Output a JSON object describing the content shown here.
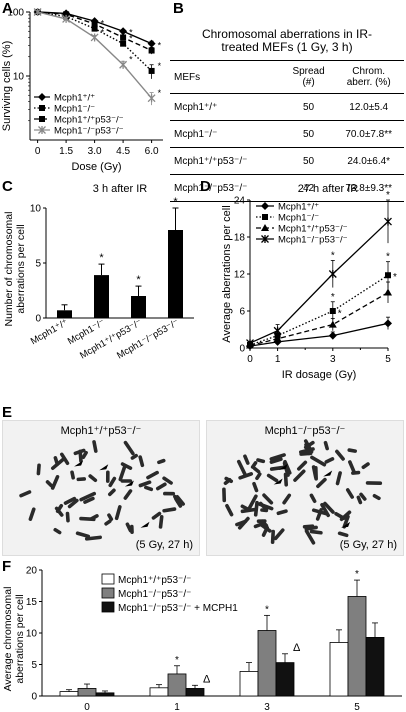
{
  "panels": {
    "A": "A",
    "B": "B",
    "C": "C",
    "D": "D",
    "E": "E",
    "F": "F"
  },
  "panelA": {
    "ylabel": "Surviving cells (%)",
    "xlabel": "Dose (Gy)",
    "xticks": [
      "0",
      "1.5",
      "3.0",
      "4.5",
      "6.0"
    ],
    "yticks": [
      "100",
      "10"
    ],
    "legend": [
      "Mcph1⁺/⁺",
      "Mcph1⁻/⁻",
      "Mcph1⁺/⁺p53⁻/⁻",
      "Mcph1⁻/⁻p53⁻/⁻"
    ],
    "asterisk": "*"
  },
  "panelB": {
    "title_line1": "Chromosomal aberrations in IR-",
    "title_line2": "treated MEFs (1 Gy, 3 h)",
    "columns": [
      "MEFs",
      "Spread\n(#)",
      "Chrom.\naberr. (%)"
    ],
    "col_mefs": "MEFs",
    "col_spread_1": "Spread",
    "col_spread_2": "(#)",
    "col_aberr_1": "Chrom.",
    "col_aberr_2": "aberr. (%)",
    "rows": [
      {
        "mef": "Mcph1⁺/⁺",
        "spread": "50",
        "aberr": "12.0±5.4"
      },
      {
        "mef": "Mcph1⁻/⁻",
        "spread": "50",
        "aberr": "70.0±7.8**"
      },
      {
        "mef": "Mcph1⁺/⁺p53⁻/⁻",
        "spread": "50",
        "aberr": "24.0±6.4*"
      },
      {
        "mef": "Mcph1⁻/⁻p53⁻/⁻",
        "spread": "42",
        "aberr": "73.8±9.3**"
      }
    ]
  },
  "panelC": {
    "title": "3 h after IR",
    "ylabel_1": "Number of chromosomal",
    "ylabel_2": "aberrations per cell",
    "asterisk": "*"
  },
  "panelD": {
    "title": "27 h after IR",
    "ylabel": "Average aberrations per cell",
    "xlabel": "IR dosage (Gy)",
    "asterisk": "*"
  },
  "panelE": {
    "left_title": "Mcph1⁺/⁺p53⁻/⁻",
    "right_title": "Mcph1⁻/⁻p53⁻/⁻",
    "left_condition": "(5 Gy, 27 h)",
    "right_condition": "(5 Gy, 27 h)"
  },
  "panelF": {
    "ylabel_1": "Average chromosomal",
    "ylabel_2": "aberrations per cell",
    "asterisk": "*",
    "delta": "Δ"
  },
  "colors": {
    "white_bar": "#ffffff",
    "grey_bar": "#7f7f7f",
    "black_bar": "#111111",
    "line_grey": "#888888"
  },
  "chart_data": [
    {
      "panel": "A",
      "type": "line",
      "x": [
        0,
        1.5,
        3.0,
        4.5,
        6.0
      ],
      "yscale": "log",
      "ylim": [
        1,
        100
      ],
      "xlabel": "Dose (Gy)",
      "ylabel": "Surviving cells (%)",
      "series": [
        {
          "name": "Mcph1⁺/⁺",
          "values": [
            100,
            95,
            72,
            50,
            32
          ],
          "errors": [
            0,
            3,
            4,
            3,
            3
          ],
          "style": "solid",
          "marker": "diamond"
        },
        {
          "name": "Mcph1⁻/⁻",
          "values": [
            100,
            85,
            55,
            32,
            12
          ],
          "errors": [
            0,
            3,
            4,
            3,
            3
          ],
          "style": "dotted",
          "marker": "square"
        },
        {
          "name": "Mcph1⁺/⁺p53⁻/⁻",
          "values": [
            100,
            92,
            65,
            40,
            25
          ],
          "errors": [
            0,
            3,
            4,
            3,
            3
          ],
          "style": "dashed",
          "marker": "square"
        },
        {
          "name": "Mcph1⁻/⁻p53⁻/⁻",
          "values": [
            100,
            78,
            40,
            15,
            4.5
          ],
          "errors": [
            0,
            3,
            3,
            2,
            1
          ],
          "style": "solid-grey",
          "marker": "x"
        }
      ],
      "legend": "bottom-left"
    },
    {
      "panel": "C",
      "type": "bar",
      "categories": [
        "Mcph1⁺/⁺",
        "Mcph1⁻/⁻",
        "Mcph1⁺/⁺p53⁻/⁻",
        "Mcph1⁻/⁻p53⁻/⁻"
      ],
      "values": [
        0.7,
        3.9,
        2.0,
        8.0
      ],
      "errors": [
        0.5,
        1.0,
        0.9,
        2.0
      ],
      "significant": [
        false,
        true,
        true,
        true
      ],
      "ylim": [
        0,
        10
      ],
      "title": "3 h after IR",
      "ylabel": "Number of chromosomal aberrations per cell"
    },
    {
      "panel": "D",
      "type": "line",
      "x": [
        0,
        1,
        3,
        5
      ],
      "xlim": [
        0,
        5
      ],
      "ylim": [
        0,
        24
      ],
      "yticks": [
        0,
        6,
        12,
        18,
        24
      ],
      "title": "27 h after IR",
      "xlabel": "IR dosage (Gy)",
      "ylabel": "Average aberrations per cell",
      "series": [
        {
          "name": "Mcph1⁺/⁺",
          "values": [
            0.3,
            1.0,
            2.0,
            4.0
          ],
          "errors": [
            0.3,
            0.4,
            0.6,
            1.0
          ],
          "style": "solid",
          "marker": "diamond"
        },
        {
          "name": "Mcph1⁻/⁻",
          "values": [
            0.5,
            2.0,
            6.0,
            11.8
          ],
          "errors": [
            0.3,
            0.6,
            1.5,
            2.2
          ],
          "style": "dotted",
          "marker": "square"
        },
        {
          "name": "Mcph1⁺/⁺p53⁻/⁻",
          "values": [
            0.4,
            1.5,
            3.8,
            9.0
          ],
          "errors": [
            0.3,
            0.5,
            1.0,
            1.7
          ],
          "style": "dashed",
          "marker": "triangle"
        },
        {
          "name": "Mcph1⁻/⁻p53⁻/⁻",
          "values": [
            0.8,
            2.8,
            12.0,
            20.5
          ],
          "errors": [
            0.3,
            1.0,
            2.2,
            3.5
          ],
          "style": "solid",
          "marker": "x"
        }
      ],
      "legend": "top-left"
    },
    {
      "panel": "F",
      "type": "bar",
      "categories": [
        "0",
        "1",
        "3",
        "5"
      ],
      "ylim": [
        0,
        20
      ],
      "ylabel": "Average chromosomal aberrations per cell",
      "series": [
        {
          "name": "Mcph1⁺/⁺p53⁻/⁻",
          "values": [
            0.7,
            1.3,
            3.9,
            8.5
          ],
          "errors": [
            0.3,
            0.5,
            1.4,
            2.0
          ],
          "color": "white"
        },
        {
          "name": "Mcph1⁻/⁻p53⁻/⁻",
          "values": [
            1.2,
            3.5,
            10.4,
            15.8
          ],
          "errors": [
            0.7,
            1.3,
            2.4,
            2.6
          ],
          "color": "grey"
        },
        {
          "name": "Mcph1⁻/⁻p53⁻/⁻ + MCPH1",
          "values": [
            0.5,
            1.2,
            5.3,
            9.3
          ],
          "errors": [
            0.3,
            0.5,
            1.4,
            2.3
          ],
          "color": "black"
        }
      ],
      "legend": "top-left"
    }
  ]
}
